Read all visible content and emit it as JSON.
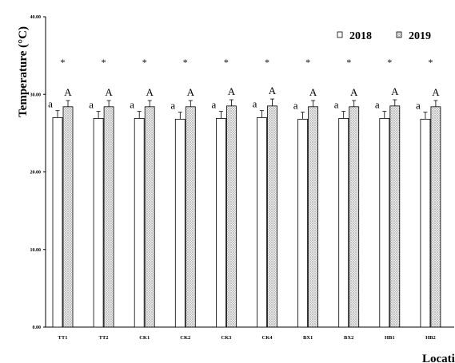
{
  "chart_data": {
    "type": "bar",
    "title": "",
    "ylabel": "Temperature (°C)",
    "xlabel": "Location",
    "ylim": [
      0,
      40
    ],
    "yticks": [
      "0.00",
      "10.00",
      "20.00",
      "30.00",
      "40.00"
    ],
    "categories": [
      "TT1",
      "TT2",
      "CK1",
      "CK2",
      "CK3",
      "CK4",
      "BX1",
      "BX2",
      "HB1",
      "HB2"
    ],
    "series": [
      {
        "name": "2018",
        "pattern": "white",
        "values": [
          27.0,
          26.9,
          26.9,
          26.8,
          26.9,
          27.0,
          26.8,
          26.9,
          26.9,
          26.8
        ],
        "errors": [
          0.9,
          0.9,
          0.9,
          0.9,
          0.9,
          0.9,
          0.9,
          0.9,
          0.9,
          0.9
        ],
        "letters": [
          "a",
          "a",
          "a",
          "a",
          "a",
          "a",
          "a",
          "a",
          "a",
          "a"
        ]
      },
      {
        "name": "2019",
        "pattern": "dotted",
        "values": [
          28.4,
          28.4,
          28.4,
          28.4,
          28.5,
          28.5,
          28.4,
          28.4,
          28.5,
          28.4
        ],
        "errors": [
          0.8,
          0.8,
          0.8,
          0.8,
          0.8,
          0.9,
          0.8,
          0.8,
          0.8,
          0.8
        ],
        "letters": [
          "A",
          "A",
          "A",
          "A",
          "A",
          "A",
          "A",
          "A",
          "A",
          "A"
        ]
      }
    ],
    "significance": [
      "*",
      "*",
      "*",
      "*",
      "*",
      "*",
      "*",
      "*",
      "*",
      "*"
    ],
    "legend_position": "top-right",
    "grid": false
  },
  "colors": {
    "bar_2018_fill": "#ffffff",
    "bar_2019_fill": "#d9d9d9",
    "stroke": "#000000"
  }
}
